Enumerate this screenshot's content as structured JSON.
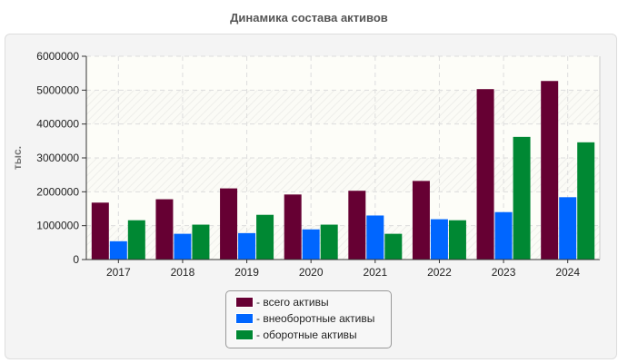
{
  "chart_data": {
    "type": "bar",
    "title": "Динамика состава активов",
    "ylabel": "тыс.",
    "xlabel": "",
    "ylim": [
      0,
      6000000
    ],
    "yticks": [
      "0",
      "1000000",
      "2000000",
      "3000000",
      "4000000",
      "5000000",
      "6000000"
    ],
    "categories": [
      "2017",
      "2018",
      "2019",
      "2020",
      "2021",
      "2022",
      "2023",
      "2024"
    ],
    "series": [
      {
        "name": "- всего активы",
        "color": "#660033",
        "values": [
          1680000,
          1780000,
          2100000,
          1920000,
          2030000,
          2320000,
          5030000,
          5270000
        ]
      },
      {
        "name": "- внеоборотные активы",
        "color": "#0066ff",
        "values": [
          540000,
          760000,
          780000,
          890000,
          1300000,
          1190000,
          1400000,
          1840000
        ]
      },
      {
        "name": "- оборотные активы",
        "color": "#008833",
        "values": [
          1160000,
          1030000,
          1320000,
          1030000,
          760000,
          1160000,
          3620000,
          3460000
        ]
      }
    ],
    "grid": true,
    "legend_position": "bottom-center"
  }
}
